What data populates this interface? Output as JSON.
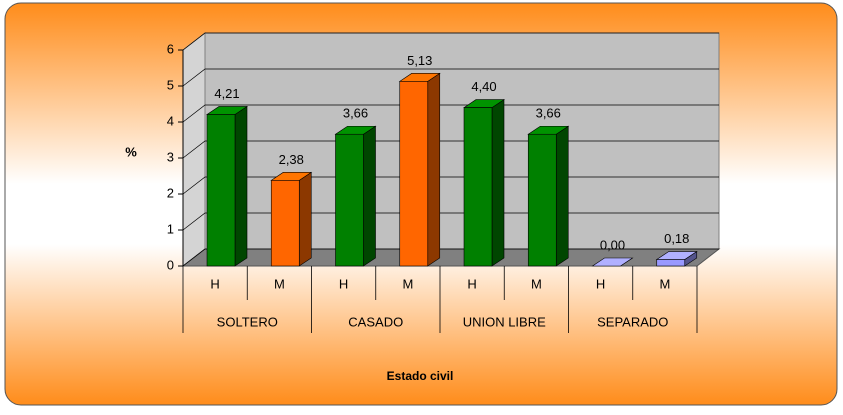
{
  "chart_data": {
    "type": "bar",
    "categories": [
      "H",
      "M",
      "H",
      "M",
      "H",
      "M",
      "H",
      "M"
    ],
    "groups": [
      "SOLTERO",
      "CASADO",
      "UNION LIBRE",
      "SEPARADO"
    ],
    "values": [
      4.21,
      2.38,
      3.66,
      5.13,
      4.4,
      3.66,
      0.0,
      0.18
    ],
    "value_labels": [
      "4,21",
      "2,38",
      "3,66",
      "5,13",
      "4,40",
      "3,66",
      "0,00",
      "0,18"
    ],
    "colors": [
      "#008000",
      "#ff6600",
      "#008000",
      "#ff6600",
      "#008000",
      "#008000",
      "#9999ff",
      "#9999ff"
    ],
    "ylabel": "%",
    "xlabel": "Estado civil",
    "ylim": [
      0,
      6
    ],
    "yticks": [
      0,
      1,
      2,
      3,
      4,
      5,
      6
    ],
    "grid": true
  }
}
